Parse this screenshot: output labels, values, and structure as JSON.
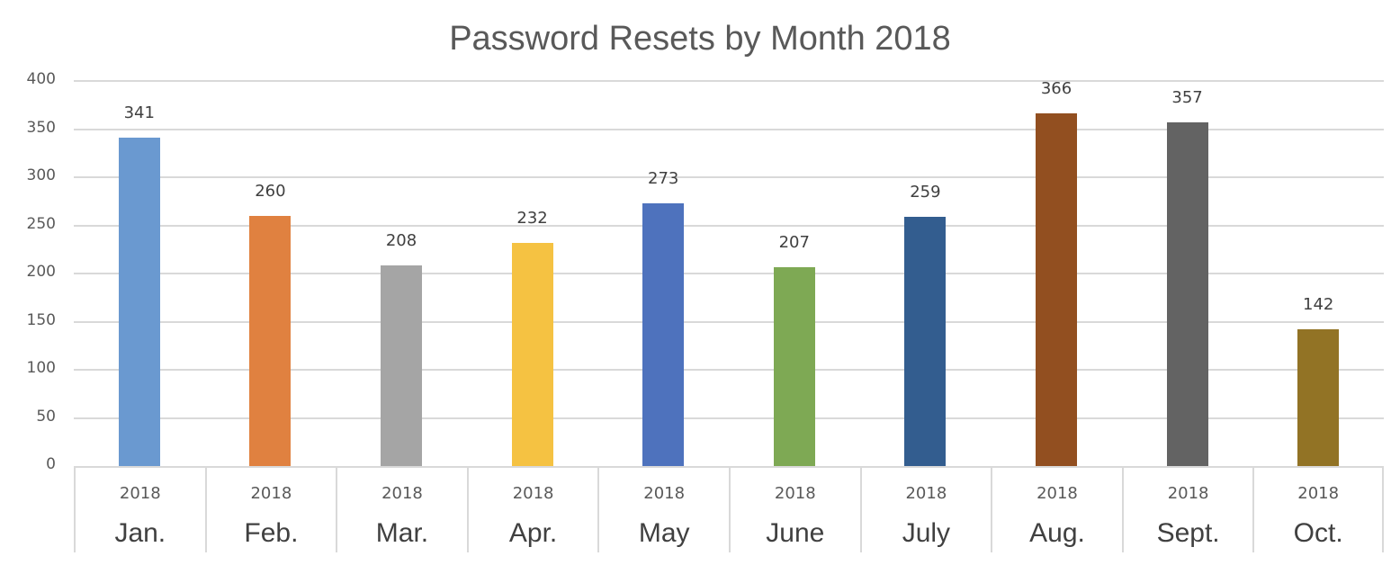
{
  "chart_data": {
    "type": "bar",
    "title": "Password Resets by Month 2018",
    "xlabel": "",
    "ylabel": "",
    "ylim": [
      0,
      400
    ],
    "yticks": [
      0,
      50,
      100,
      150,
      200,
      250,
      300,
      350,
      400
    ],
    "grid": true,
    "legend": null,
    "categories": [
      "Jan.",
      "Feb.",
      "Mar.",
      "Apr.",
      "May",
      "June",
      "July",
      "Aug.",
      "Sept.",
      "Oct."
    ],
    "category_group_labels": [
      "2018",
      "2018",
      "2018",
      "2018",
      "2018",
      "2018",
      "2018",
      "2018",
      "2018",
      "2018"
    ],
    "values": [
      341,
      260,
      208,
      232,
      273,
      207,
      259,
      366,
      357,
      142
    ],
    "colors": [
      "#6a99d0",
      "#e08140",
      "#a5a5a5",
      "#f5c242",
      "#4e72bd",
      "#7ea954",
      "#335d8f",
      "#924f20",
      "#636363",
      "#927325"
    ],
    "data_labels": [
      "341",
      "260",
      "208",
      "232",
      "273",
      "207",
      "259",
      "366",
      "357",
      "142"
    ]
  },
  "ytick_labels": [
    "0",
    "50",
    "100",
    "150",
    "200",
    "250",
    "300",
    "350",
    "400"
  ]
}
